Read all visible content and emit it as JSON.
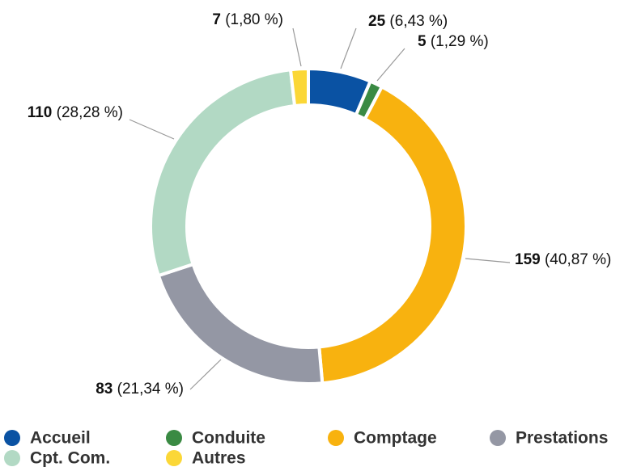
{
  "chart_data": {
    "type": "donut",
    "categories": [
      "Accueil",
      "Conduite",
      "Comptage",
      "Prestations",
      "Cpt. Com.",
      "Autres"
    ],
    "values": [
      25,
      5,
      159,
      83,
      110,
      7
    ],
    "percent_labels": [
      "(6,43 %)",
      "(1,29 %)",
      "(40,87 %)",
      "(21,34 %)",
      "(28,28 %)",
      "(1,80 %)"
    ],
    "colors": [
      "#0a52a3",
      "#3a8a43",
      "#f8b20f",
      "#9497a4",
      "#b2d9c4",
      "#fbd737"
    ],
    "legend": "bottom"
  }
}
